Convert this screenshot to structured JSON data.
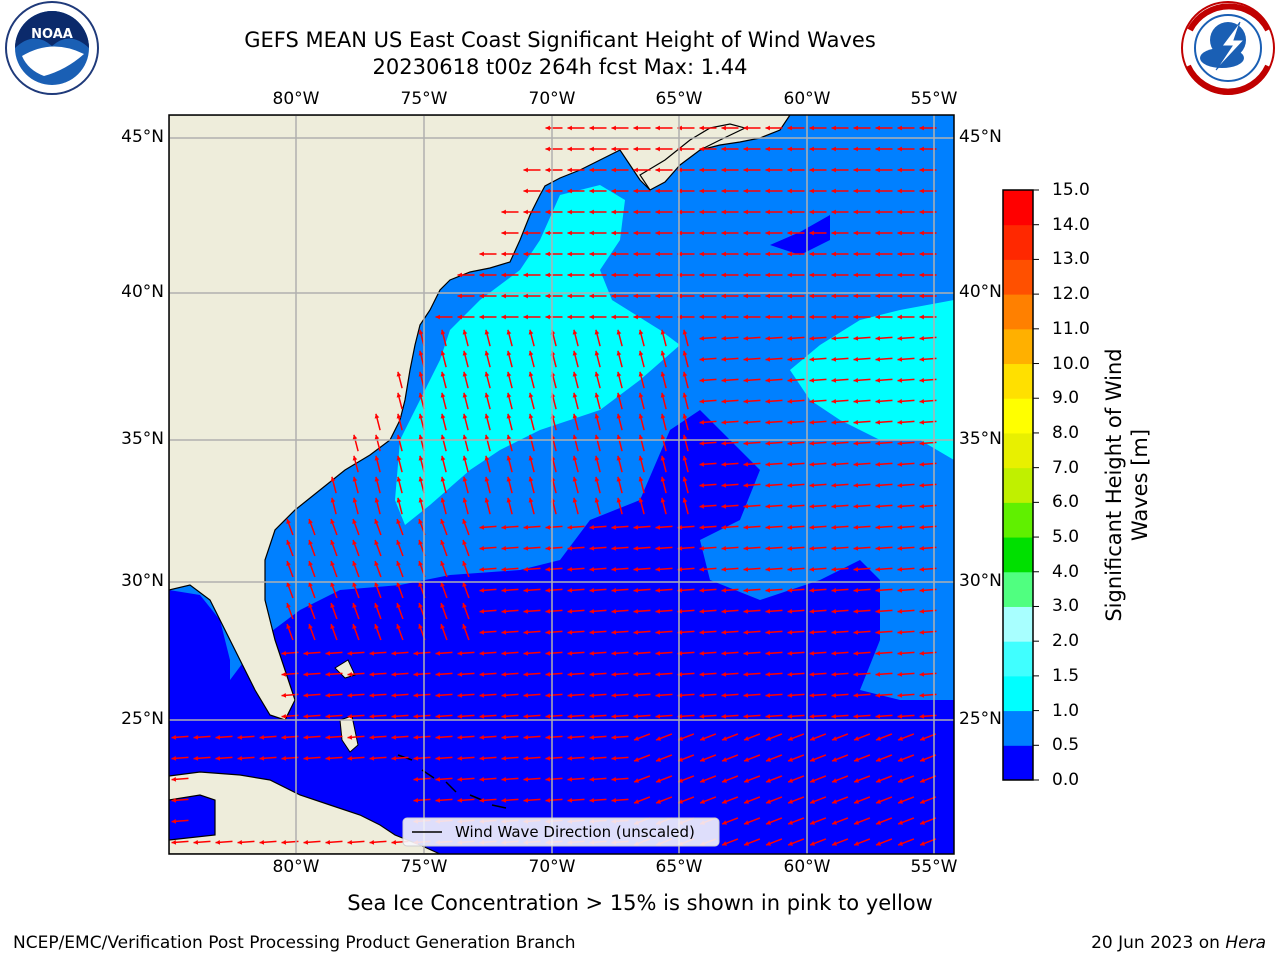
{
  "title_line1": "GEFS MEAN US East Coast Significant Height of Wind Waves",
  "title_line2": "20230618 t00z 264h fcst   Max: 1.44",
  "logos": {
    "left": "noaa-logo",
    "right": "nws-logo",
    "left_text": "NOAA",
    "right_text": "NATIONAL WEATHER SERVICE"
  },
  "lon_labels": [
    "80°W",
    "75°W",
    "70°W",
    "65°W",
    "60°W",
    "55°W"
  ],
  "lat_labels": [
    "45°N",
    "40°N",
    "35°N",
    "30°N",
    "25°N"
  ],
  "legend": {
    "label": "Wind Wave Direction (unscaled)"
  },
  "colorbar": {
    "label": "Significant Height of Wind Waves [m]",
    "ticks": [
      "0.0",
      "0.5",
      "1.0",
      "1.5",
      "2.0",
      "3.0",
      "4.0",
      "5.0",
      "6.0",
      "7.0",
      "8.0",
      "9.0",
      "10.0",
      "11.0",
      "12.0",
      "13.0",
      "14.0",
      "15.0"
    ],
    "colors": [
      "#0000ff",
      "#0080ff",
      "#00ffff",
      "#40ffff",
      "#a8ffff",
      "#50ff80",
      "#00e000",
      "#60f000",
      "#c0f000",
      "#e8f000",
      "#ffff00",
      "#ffe000",
      "#ffb000",
      "#ff8000",
      "#ff5000",
      "#ff2800",
      "#ff0000"
    ]
  },
  "colors": {
    "land": "#eeeddb",
    "arrow": "#ff0000",
    "grid": "#b0b0b0"
  },
  "footnote": "Sea Ice Concentration > 15% is shown in pink to yellow",
  "credit_left": "NCEP/EMC/Verification Post Processing Product Generation Branch",
  "credit_right_date": "20 Jun 2023 on",
  "credit_right_host": "Hera"
}
